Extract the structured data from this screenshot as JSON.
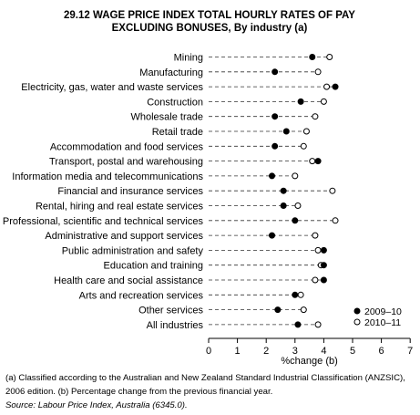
{
  "title_line1": "29.12  WAGE PRICE INDEX TOTAL HOURLY RATES OF PAY",
  "title_line2": "EXCLUDING BONUSES, By industry (a)",
  "footnote": "(a) Classified according to the Australian and New Zealand Standard Industrial Classification (ANZSIC), 2006 edition. (b) Percentage change from the previous financial year.",
  "source": "Source: Labour Price Index, Australia (6345.0).",
  "chart_data": {
    "type": "scatter",
    "title": "29.12  WAGE PRICE INDEX TOTAL HOURLY RATES OF PAY EXCLUDING BONUSES, By industry (a)",
    "xlabel": "%change (b)",
    "ylabel": "",
    "xlim": [
      0,
      7
    ],
    "xticks": [
      "0",
      "1",
      "2",
      "3",
      "4",
      "5",
      "6",
      "7"
    ],
    "grid": false,
    "legend_position": "bottom-right",
    "categories": [
      "Mining",
      "Manufacturing",
      "Electricity, gas, water and waste services",
      "Construction",
      "Wholesale trade",
      "Retail trade",
      "Accommodation and food services",
      "Transport, postal and warehousing",
      "Information media and telecommunications",
      "Financial and insurance services",
      "Rental, hiring and real estate services",
      "Professional, scientific and technical services",
      "Administrative and support services",
      "Public administration and safety",
      "Education and training",
      "Health care and social assistance",
      "Arts and recreation services",
      "Other services",
      "All industries"
    ],
    "series": [
      {
        "name": "2009–10",
        "marker": "filled",
        "color": "#000000",
        "values": [
          3.6,
          2.3,
          4.4,
          3.2,
          2.3,
          2.7,
          2.3,
          3.8,
          2.2,
          2.6,
          2.6,
          3.0,
          2.2,
          4.0,
          4.0,
          4.0,
          3.0,
          2.4,
          3.1
        ]
      },
      {
        "name": "2010–11",
        "marker": "hollow",
        "color": "#000000",
        "values": [
          4.2,
          3.8,
          4.1,
          4.0,
          3.7,
          3.4,
          3.3,
          3.6,
          3.0,
          4.3,
          3.1,
          4.4,
          3.7,
          3.8,
          3.9,
          3.7,
          3.2,
          3.3,
          3.8
        ]
      }
    ]
  }
}
